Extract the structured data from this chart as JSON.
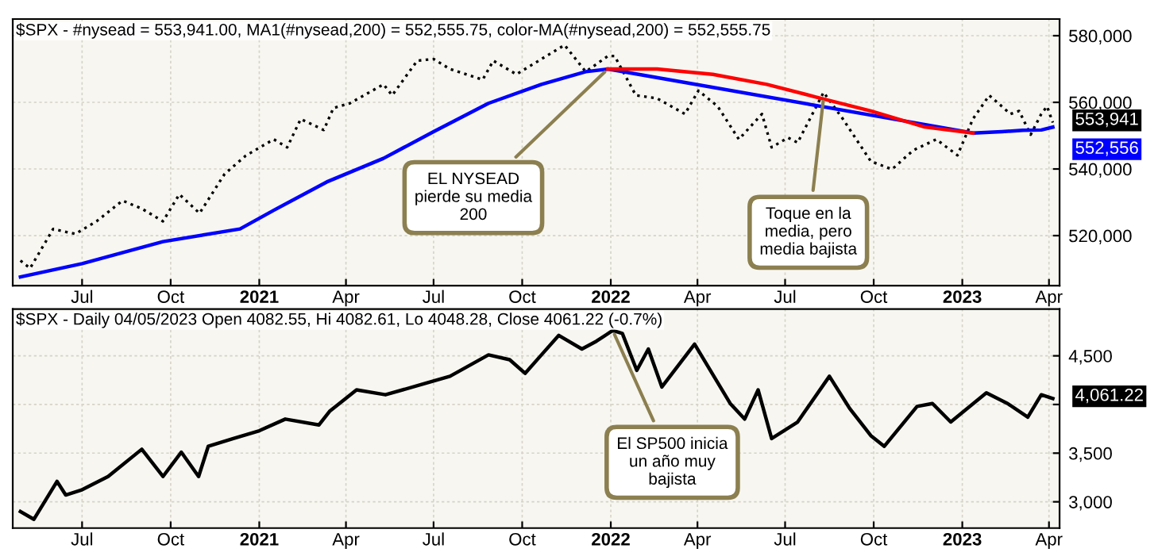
{
  "chart_data": [
    {
      "type": "line",
      "title": "$SPX - #nysead = 553,941.00, MA1(#nysead,200) = 552,555.75, color-MA(#nysead,200) = 552,555.75",
      "xlim": [
        "2020-04-20",
        "2023-04-12"
      ],
      "xticks": [
        {
          "value": "2020-07-01",
          "label": "Jul"
        },
        {
          "value": "2020-10-01",
          "label": "Oct"
        },
        {
          "value": "2021-01-01",
          "label": "2021"
        },
        {
          "value": "2021-04-01",
          "label": "Apr"
        },
        {
          "value": "2021-07-01",
          "label": "Jul"
        },
        {
          "value": "2021-10-01",
          "label": "Oct"
        },
        {
          "value": "2022-01-01",
          "label": "2022"
        },
        {
          "value": "2022-04-01",
          "label": "Apr"
        },
        {
          "value": "2022-07-01",
          "label": "Jul"
        },
        {
          "value": "2022-10-01",
          "label": "Oct"
        },
        {
          "value": "2023-01-01",
          "label": "2023"
        },
        {
          "value": "2023-04-01",
          "label": "Apr"
        }
      ],
      "ylim": [
        505000,
        585000
      ],
      "yticks": [
        {
          "value": 520000,
          "label": "520,000"
        },
        {
          "value": 540000,
          "label": "540,000"
        },
        {
          "value": 560000,
          "label": "560,000"
        },
        {
          "value": 580000,
          "label": "580,000"
        }
      ],
      "grid": true,
      "series": [
        {
          "color": "#000000",
          "line_style": "dotted",
          "x": [
            "2020-04-28",
            "2020-05-08",
            "2020-06-01",
            "2020-06-24",
            "2020-07-16",
            "2020-08-12",
            "2020-09-01",
            "2020-09-23",
            "2020-10-10",
            "2020-10-31",
            "2020-11-26",
            "2020-12-18",
            "2021-01-16",
            "2021-01-30",
            "2021-02-13",
            "2021-03-09",
            "2021-03-19",
            "2021-04-05",
            "2021-05-10",
            "2021-05-19",
            "2021-06-14",
            "2021-07-01",
            "2021-07-18",
            "2021-08-21",
            "2021-09-01",
            "2021-09-25",
            "2021-10-21",
            "2021-11-14",
            "2021-12-06",
            "2021-12-29",
            "2022-01-05",
            "2022-01-27",
            "2022-02-18",
            "2022-03-19",
            "2022-04-02",
            "2022-04-22",
            "2022-05-14",
            "2022-06-07",
            "2022-06-17",
            "2022-07-04",
            "2022-07-14",
            "2022-08-10",
            "2022-08-30",
            "2022-09-28",
            "2022-10-20",
            "2022-11-11",
            "2022-12-05",
            "2022-12-27",
            "2023-01-12",
            "2023-01-29",
            "2023-02-20",
            "2023-03-01",
            "2023-03-13",
            "2023-03-24",
            "2023-03-30",
            "2023-04-05"
          ],
          "values": [
            512500,
            510200,
            522000,
            520500,
            524300,
            530500,
            528100,
            524300,
            532400,
            526700,
            538500,
            544000,
            548900,
            546500,
            555000,
            551700,
            558300,
            559700,
            565400,
            562100,
            572500,
            573000,
            570000,
            566800,
            572500,
            568400,
            573000,
            577200,
            569200,
            573900,
            573900,
            562100,
            561200,
            556500,
            563500,
            558800,
            548900,
            556500,
            546500,
            549400,
            547900,
            563000,
            555000,
            542300,
            539900,
            545600,
            548900,
            544100,
            555000,
            562100,
            556500,
            557400,
            550300,
            556500,
            558800,
            553941
          ]
        },
        {
          "color": "#0000ff",
          "x": [
            "2020-04-28",
            "2020-07-01",
            "2020-09-23",
            "2020-12-12",
            "2021-01-16",
            "2021-03-12",
            "2021-05-10",
            "2021-07-01",
            "2021-08-27",
            "2021-10-21",
            "2021-12-06",
            "2021-12-29",
            "2023-01-12",
            "2023-02-11",
            "2023-03-05",
            "2023-03-24",
            "2023-04-05"
          ],
          "values": [
            507600,
            511600,
            518200,
            522000,
            527600,
            536100,
            543200,
            551200,
            559700,
            565400,
            569200,
            570000,
            550800,
            551200,
            551600,
            551700,
            552556
          ]
        },
        {
          "color": "#ff0000",
          "x": [
            "2021-12-29",
            "2022-02-18",
            "2022-04-17",
            "2022-06-12",
            "2022-08-02",
            "2022-09-28",
            "2022-11-23",
            "2023-01-12"
          ],
          "values": [
            570000,
            570000,
            568400,
            565400,
            561600,
            557400,
            552600,
            550800
          ]
        }
      ],
      "annotations": [
        {
          "text": "EL NYSEAD\npierde su media\n200",
          "x": "2021-12-29",
          "y": 570000
        },
        {
          "text": "Toque en la\nmedia, pero\nmedia bajista",
          "x": "2022-08-10",
          "y": 561600
        },
        {
          "text": "553,941",
          "x": "2023-04-05",
          "y": 553941
        },
        {
          "text": "552,556",
          "x": "2023-04-05",
          "y": 552556
        }
      ]
    },
    {
      "type": "line",
      "title": "$SPX - Daily 04/05/2023 Open 4082.55, Hi 4082.61, Lo 4048.28, Close 4061.22 (-0.7%)",
      "xlim": [
        "2020-04-20",
        "2023-04-12"
      ],
      "xticks": [
        {
          "value": "2020-07-01",
          "label": "Jul"
        },
        {
          "value": "2020-10-01",
          "label": "Oct"
        },
        {
          "value": "2021-01-01",
          "label": "2021"
        },
        {
          "value": "2021-04-01",
          "label": "Apr"
        },
        {
          "value": "2021-07-01",
          "label": "Jul"
        },
        {
          "value": "2021-10-01",
          "label": "Oct"
        },
        {
          "value": "2022-01-01",
          "label": "2022"
        },
        {
          "value": "2022-04-01",
          "label": "Apr"
        },
        {
          "value": "2022-07-01",
          "label": "Jul"
        },
        {
          "value": "2022-10-01",
          "label": "Oct"
        },
        {
          "value": "2023-01-01",
          "label": "2023"
        },
        {
          "value": "2023-04-01",
          "label": "Apr"
        }
      ],
      "ylim": [
        2730,
        4980
      ],
      "yticks": [
        {
          "value": 3000,
          "label": "3,000"
        },
        {
          "value": 3500,
          "label": "3,500"
        },
        {
          "value": 4000,
          "label": null
        },
        {
          "value": 4500,
          "label": "4,500"
        }
      ],
      "grid": true,
      "series": [
        {
          "color": "#000000",
          "x": [
            "2020-04-28",
            "2020-05-12",
            "2020-06-05",
            "2020-06-14",
            "2020-06-30",
            "2020-07-28",
            "2020-09-01",
            "2020-09-23",
            "2020-10-12",
            "2020-10-30",
            "2020-11-09",
            "2020-12-05",
            "2021-01-01",
            "2021-01-28",
            "2021-03-04",
            "2021-03-15",
            "2021-04-12",
            "2021-05-12",
            "2021-06-20",
            "2021-07-18",
            "2021-08-27",
            "2021-09-18",
            "2021-10-04",
            "2021-10-21",
            "2021-11-08",
            "2021-12-02",
            "2021-12-17",
            "2022-01-03",
            "2022-01-13",
            "2022-01-28",
            "2022-02-09",
            "2022-02-23",
            "2022-03-29",
            "2022-05-05",
            "2022-05-20",
            "2022-06-03",
            "2022-06-17",
            "2022-07-14",
            "2022-08-16",
            "2022-09-06",
            "2022-09-28",
            "2022-10-12",
            "2022-11-15",
            "2022-12-01",
            "2022-12-20",
            "2023-01-26",
            "2023-02-17",
            "2023-03-10",
            "2023-03-24",
            "2023-04-05"
          ],
          "values": [
            2900,
            2820,
            3210,
            3070,
            3120,
            3260,
            3540,
            3260,
            3510,
            3260,
            3570,
            3650,
            3730,
            3850,
            3790,
            3930,
            4150,
            4100,
            4210,
            4290,
            4510,
            4460,
            4320,
            4510,
            4710,
            4570,
            4650,
            4760,
            4730,
            4350,
            4570,
            4180,
            4620,
            4010,
            3850,
            4150,
            3650,
            3820,
            4290,
            3960,
            3680,
            3570,
            3980,
            4010,
            3820,
            4120,
            4010,
            3870,
            4100,
            4061.22
          ]
        }
      ],
      "annotations": [
        {
          "text": "El SP500 inicia\nun año muy\nbajista",
          "x": "2022-01-03",
          "y": 4760
        },
        {
          "text": "4,061.22",
          "x": "2023-04-05",
          "y": 4061.22
        }
      ]
    }
  ]
}
